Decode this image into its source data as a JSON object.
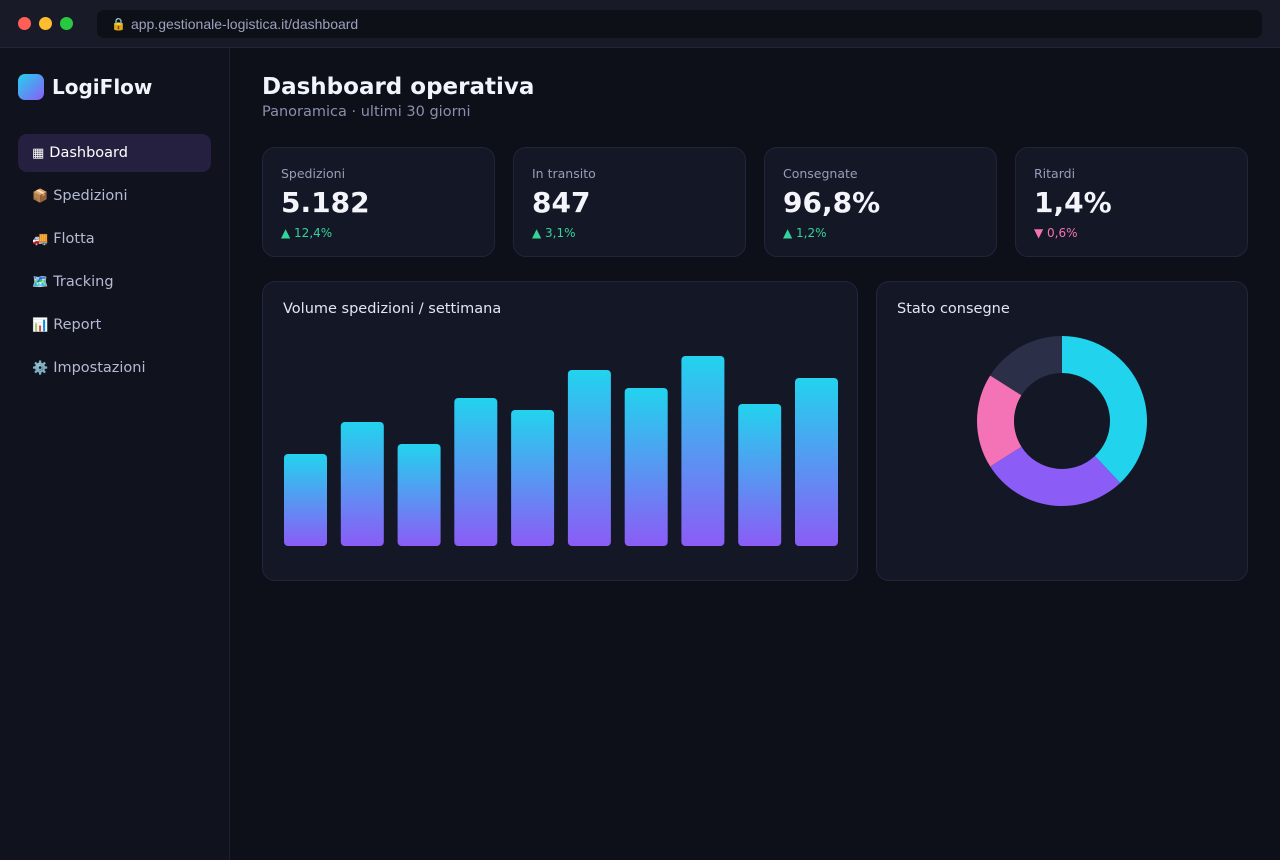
{
  "browser": {
    "url": "app.gestionale-logistica.it/dashboard",
    "lock_icon": "🔒"
  },
  "sidebar": {
    "brand": "LogiFlow",
    "items": [
      {
        "icon": "▦",
        "label": "Dashboard",
        "active": true
      },
      {
        "icon": "📦",
        "label": "Spedizioni"
      },
      {
        "icon": "🚚",
        "label": "Flotta"
      },
      {
        "icon": "🗺️",
        "label": "Tracking"
      },
      {
        "icon": "📊",
        "label": "Report"
      },
      {
        "icon": "⚙️",
        "label": "Impostazioni"
      }
    ]
  },
  "header": {
    "title": "Dashboard operativa",
    "subtitle": "Panoramica · ultimi 30 giorni"
  },
  "kpis": [
    {
      "label": "Spedizioni",
      "value": "5.182",
      "delta": "▲ 12,4%",
      "trend": "up"
    },
    {
      "label": "In transito",
      "value": "847",
      "delta": "▲ 3,1%",
      "trend": "up"
    },
    {
      "label": "Consegnate",
      "value": "96,8%",
      "delta": "▲ 1,2%",
      "trend": "up"
    },
    {
      "label": "Ritardi",
      "value": "1,4%",
      "delta": "▼ 0,6%",
      "trend": "down"
    }
  ],
  "colors": {
    "accent_cyan": "#22d3ee",
    "accent_violet": "#8b5cf6",
    "accent_pink": "#f472b6",
    "muted_slice": "#2b2f48",
    "positive": "#34d399",
    "negative": "#f472b6"
  },
  "chart_data": [
    {
      "type": "bar",
      "title": "Volume spedizioni / settimana",
      "categories": [
        "",
        "",
        "",
        "",
        "",
        "",
        "",
        "",
        "",
        ""
      ],
      "values": [
        46,
        62,
        51,
        74,
        68,
        88,
        79,
        95,
        71,
        84
      ],
      "ylim": [
        0,
        100
      ],
      "grid": false,
      "legend": "none"
    },
    {
      "type": "pie",
      "title": "Stato consegne",
      "donut": true,
      "values": [
        38,
        28,
        18,
        16
      ],
      "colors": [
        "#22d3ee",
        "#8b5cf6",
        "#f472b6",
        "#2b2f48"
      ],
      "legend": "none"
    }
  ]
}
